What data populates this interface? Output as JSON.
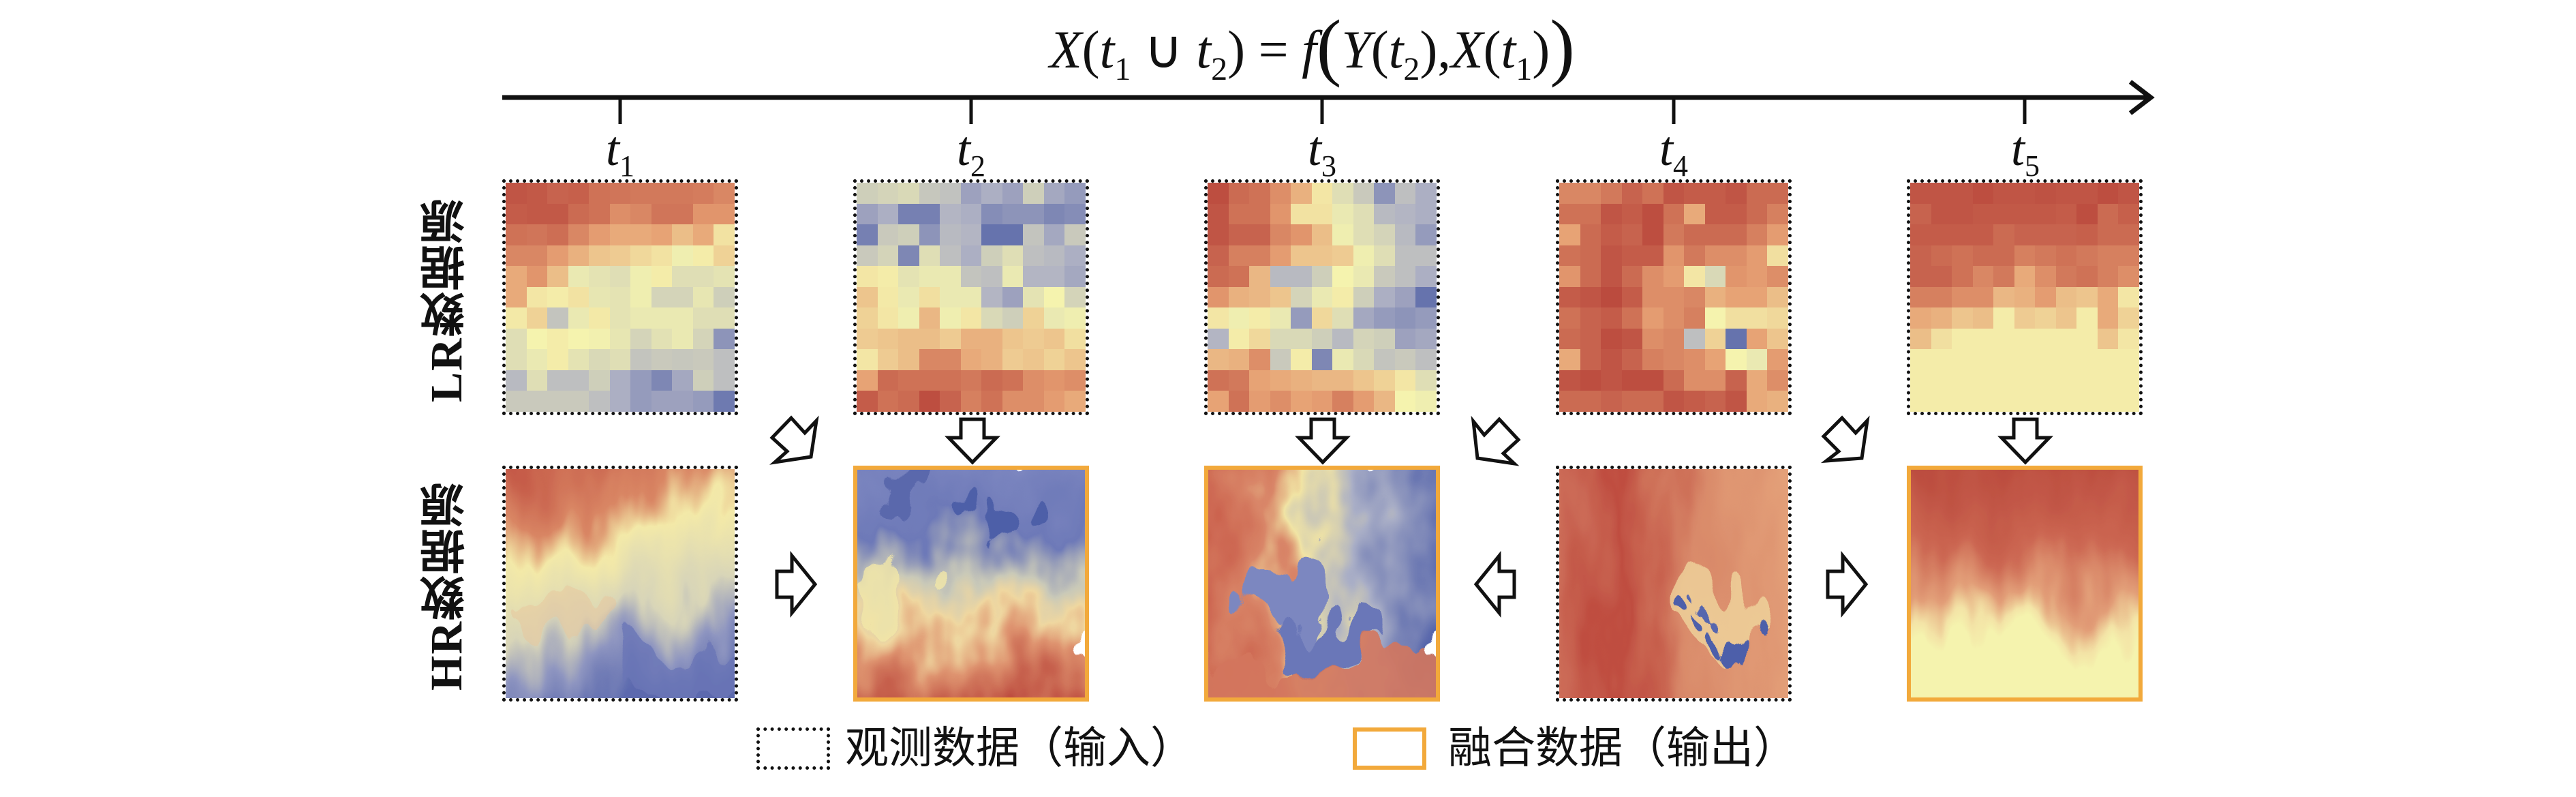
{
  "formula": {
    "lhs_var": "X",
    "lhs_sub1": "1",
    "lhs_sub2": "2",
    "t": "t",
    "union": "∪",
    "equals": "=",
    "func": "f",
    "y_var": "Y",
    "y_sub": "2",
    "comma": ",",
    "x_var": "X",
    "x_sub": "1"
  },
  "timeline": {
    "ticks": [
      {
        "symbol": "t",
        "sub": "1"
      },
      {
        "symbol": "t",
        "sub": "2"
      },
      {
        "symbol": "t",
        "sub": "3"
      },
      {
        "symbol": "t",
        "sub": "4"
      },
      {
        "symbol": "t",
        "sub": "5"
      }
    ]
  },
  "rows": {
    "lr_label": "LR数据源",
    "hr_label": "HR数据源"
  },
  "colors": {
    "fusion_border": "#F2A93B",
    "observed_border": "#111111",
    "cmap_blue": "#4F5FA6",
    "cmap_yellow": "#F5F3AE",
    "cmap_red": "#B9473C"
  },
  "panels": {
    "lr": [
      {
        "time": "t1",
        "kind": "observed"
      },
      {
        "time": "t2",
        "kind": "observed"
      },
      {
        "time": "t3",
        "kind": "observed"
      },
      {
        "time": "t4",
        "kind": "observed"
      },
      {
        "time": "t5",
        "kind": "observed"
      }
    ],
    "hr": [
      {
        "time": "t1",
        "kind": "observed"
      },
      {
        "time": "t2",
        "kind": "fused"
      },
      {
        "time": "t3",
        "kind": "fused"
      },
      {
        "time": "t4",
        "kind": "observed"
      },
      {
        "time": "t5",
        "kind": "fused"
      }
    ]
  },
  "lr_grids": [
    [
      [
        0.96,
        0.95,
        0.92,
        0.93,
        0.88,
        0.87,
        0.86,
        0.86,
        0.86,
        0.85,
        0.82
      ],
      [
        0.94,
        0.95,
        0.95,
        0.9,
        0.88,
        0.8,
        0.82,
        0.87,
        0.87,
        0.78,
        0.78
      ],
      [
        0.88,
        0.87,
        0.89,
        0.82,
        0.76,
        0.72,
        0.72,
        0.74,
        0.66,
        0.72,
        0.55
      ],
      [
        0.82,
        0.82,
        0.76,
        0.7,
        0.64,
        0.62,
        0.58,
        0.55,
        0.48,
        0.52,
        0.6
      ],
      [
        0.72,
        0.78,
        0.66,
        0.46,
        0.44,
        0.42,
        0.48,
        0.52,
        0.42,
        0.42,
        0.44
      ],
      [
        0.72,
        0.54,
        0.52,
        0.55,
        0.45,
        0.44,
        0.48,
        0.38,
        0.38,
        0.45,
        0.36
      ],
      [
        0.53,
        0.6,
        0.32,
        0.46,
        0.53,
        0.44,
        0.46,
        0.46,
        0.46,
        0.42,
        0.42
      ],
      [
        0.42,
        0.5,
        0.52,
        0.5,
        0.49,
        0.45,
        0.38,
        0.43,
        0.46,
        0.38,
        0.16
      ],
      [
        0.42,
        0.46,
        0.52,
        0.44,
        0.4,
        0.42,
        0.32,
        0.34,
        0.33,
        0.34,
        0.3
      ],
      [
        0.28,
        0.42,
        0.3,
        0.3,
        0.36,
        0.24,
        0.18,
        0.12,
        0.22,
        0.36,
        0.3
      ],
      [
        0.34,
        0.34,
        0.34,
        0.34,
        0.3,
        0.24,
        0.18,
        0.2,
        0.2,
        0.18,
        0.08
      ]
    ],
    [
      [
        0.36,
        0.38,
        0.4,
        0.33,
        0.31,
        0.2,
        0.24,
        0.2,
        0.36,
        0.22,
        0.18
      ],
      [
        0.2,
        0.24,
        0.1,
        0.1,
        0.26,
        0.24,
        0.14,
        0.16,
        0.16,
        0.12,
        0.14
      ],
      [
        0.1,
        0.34,
        0.36,
        0.16,
        0.28,
        0.26,
        0.06,
        0.06,
        0.32,
        0.22,
        0.34
      ],
      [
        0.34,
        0.38,
        0.12,
        0.42,
        0.3,
        0.24,
        0.36,
        0.42,
        0.3,
        0.28,
        0.24
      ],
      [
        0.54,
        0.52,
        0.44,
        0.46,
        0.46,
        0.32,
        0.3,
        0.46,
        0.26,
        0.26,
        0.22
      ],
      [
        0.64,
        0.53,
        0.46,
        0.56,
        0.46,
        0.46,
        0.26,
        0.2,
        0.44,
        0.5,
        0.38
      ],
      [
        0.6,
        0.54,
        0.48,
        0.68,
        0.48,
        0.54,
        0.4,
        0.36,
        0.6,
        0.46,
        0.48
      ],
      [
        0.62,
        0.64,
        0.66,
        0.66,
        0.62,
        0.7,
        0.7,
        0.64,
        0.62,
        0.64,
        0.56
      ],
      [
        0.54,
        0.62,
        0.66,
        0.82,
        0.82,
        0.72,
        0.7,
        0.62,
        0.64,
        0.6,
        0.64
      ],
      [
        0.74,
        0.9,
        0.88,
        0.88,
        0.88,
        0.86,
        0.9,
        0.88,
        0.8,
        0.78,
        0.8
      ],
      [
        0.94,
        0.88,
        0.9,
        0.98,
        0.92,
        0.84,
        0.88,
        0.8,
        0.8,
        0.76,
        0.72
      ]
    ],
    [
      [
        0.98,
        0.9,
        0.88,
        0.8,
        0.7,
        0.54,
        0.42,
        0.34,
        0.16,
        0.3,
        0.24
      ],
      [
        0.96,
        0.88,
        0.88,
        0.78,
        0.55,
        0.55,
        0.46,
        0.42,
        0.28,
        0.26,
        0.24
      ],
      [
        0.96,
        0.92,
        0.92,
        0.82,
        0.78,
        0.66,
        0.48,
        0.42,
        0.38,
        0.28,
        0.18
      ],
      [
        0.92,
        0.84,
        0.84,
        0.76,
        0.64,
        0.64,
        0.62,
        0.48,
        0.42,
        0.3,
        0.3
      ],
      [
        0.9,
        0.88,
        0.68,
        0.28,
        0.28,
        0.36,
        0.5,
        0.46,
        0.34,
        0.3,
        0.24
      ],
      [
        0.78,
        0.7,
        0.68,
        0.64,
        0.38,
        0.46,
        0.52,
        0.36,
        0.24,
        0.2,
        0.06
      ],
      [
        0.54,
        0.48,
        0.52,
        0.46,
        0.18,
        0.58,
        0.42,
        0.22,
        0.18,
        0.16,
        0.18
      ],
      [
        0.26,
        0.52,
        0.58,
        0.4,
        0.4,
        0.36,
        0.28,
        0.38,
        0.36,
        0.2,
        0.22
      ],
      [
        0.68,
        0.7,
        0.8,
        0.34,
        0.52,
        0.12,
        0.46,
        0.4,
        0.32,
        0.34,
        0.3
      ],
      [
        0.88,
        0.86,
        0.74,
        0.72,
        0.7,
        0.68,
        0.68,
        0.64,
        0.6,
        0.54,
        0.42
      ],
      [
        0.74,
        0.88,
        0.76,
        0.8,
        0.74,
        0.76,
        0.84,
        0.76,
        0.68,
        0.5,
        0.48
      ]
    ],
    [
      [
        0.82,
        0.82,
        0.86,
        0.92,
        0.88,
        0.96,
        0.94,
        0.94,
        0.96,
        0.9,
        0.9
      ],
      [
        0.88,
        0.88,
        0.96,
        0.94,
        0.98,
        0.88,
        0.72,
        0.94,
        0.94,
        0.9,
        0.84
      ],
      [
        0.74,
        0.9,
        0.94,
        0.92,
        0.98,
        0.86,
        0.9,
        0.9,
        0.9,
        0.84,
        0.76
      ],
      [
        0.88,
        0.9,
        0.96,
        0.94,
        0.94,
        0.78,
        0.86,
        0.8,
        0.8,
        0.76,
        0.56
      ],
      [
        0.78,
        0.9,
        0.96,
        0.9,
        0.8,
        0.76,
        0.54,
        0.4,
        0.78,
        0.76,
        0.8
      ],
      [
        0.94,
        0.96,
        0.99,
        0.94,
        0.8,
        0.8,
        0.82,
        0.7,
        0.74,
        0.74,
        0.66
      ],
      [
        0.88,
        0.92,
        0.94,
        0.88,
        0.76,
        0.8,
        0.84,
        0.5,
        0.56,
        0.56,
        0.58
      ],
      [
        0.9,
        0.92,
        0.98,
        0.96,
        0.8,
        0.82,
        0.3,
        0.6,
        0.06,
        0.74,
        0.64
      ],
      [
        0.72,
        0.92,
        0.96,
        0.92,
        0.84,
        0.82,
        0.8,
        0.74,
        0.5,
        0.46,
        0.76
      ],
      [
        0.96,
        0.98,
        0.96,
        0.98,
        0.98,
        0.9,
        0.8,
        0.8,
        0.92,
        0.72,
        0.8
      ],
      [
        0.9,
        0.9,
        0.92,
        0.9,
        0.9,
        0.96,
        0.94,
        0.92,
        0.96,
        0.72,
        0.7
      ]
    ],
    [
      [
        0.96,
        0.96,
        0.96,
        0.98,
        0.96,
        0.96,
        0.97,
        0.96,
        0.96,
        0.98,
        0.96
      ],
      [
        0.92,
        0.96,
        0.96,
        0.95,
        0.95,
        0.95,
        0.95,
        0.94,
        0.98,
        0.9,
        0.93
      ],
      [
        0.94,
        0.94,
        0.94,
        0.94,
        0.9,
        0.92,
        0.92,
        0.92,
        0.93,
        0.9,
        0.9
      ],
      [
        0.92,
        0.9,
        0.88,
        0.9,
        0.9,
        0.84,
        0.86,
        0.88,
        0.86,
        0.84,
        0.84
      ],
      [
        0.92,
        0.92,
        0.88,
        0.82,
        0.86,
        0.72,
        0.8,
        0.86,
        0.88,
        0.84,
        0.8
      ],
      [
        0.84,
        0.84,
        0.8,
        0.8,
        0.68,
        0.7,
        0.76,
        0.66,
        0.64,
        0.72,
        0.54
      ],
      [
        0.72,
        0.7,
        0.64,
        0.66,
        0.52,
        0.62,
        0.6,
        0.64,
        0.52,
        0.72,
        0.6
      ],
      [
        0.66,
        0.56,
        0.52,
        0.52,
        0.52,
        0.52,
        0.52,
        0.52,
        0.52,
        0.64,
        0.54
      ],
      [
        0.52,
        0.52,
        0.52,
        0.52,
        0.52,
        0.52,
        0.52,
        0.52,
        0.52,
        0.52,
        0.52
      ],
      [
        0.52,
        0.52,
        0.52,
        0.52,
        0.52,
        0.52,
        0.52,
        0.52,
        0.52,
        0.52,
        0.52
      ],
      [
        0.52,
        0.52,
        0.52,
        0.52,
        0.52,
        0.52,
        0.52,
        0.52,
        0.52,
        0.52,
        0.52
      ]
    ]
  ],
  "legend": {
    "observed_label": "观测数据（输入）",
    "fused_label": "融合数据（输出）"
  }
}
